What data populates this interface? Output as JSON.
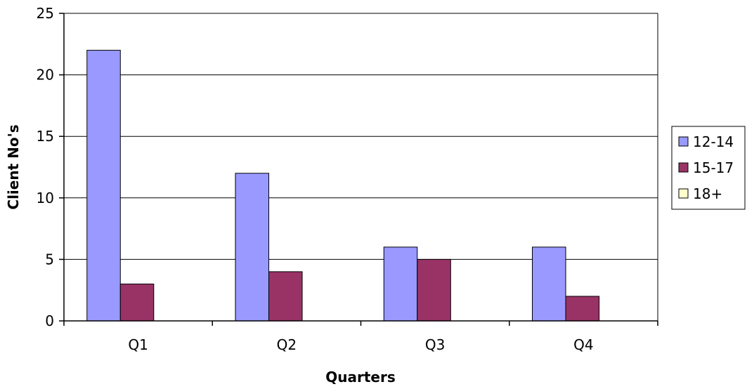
{
  "chart_data": {
    "type": "bar",
    "categories": [
      "Q1",
      "Q2",
      "Q3",
      "Q4"
    ],
    "series": [
      {
        "name": "12-14",
        "values": [
          22,
          12,
          6,
          6
        ],
        "color": "#9999FF"
      },
      {
        "name": "15-17",
        "values": [
          3,
          4,
          5,
          2
        ],
        "color": "#993366"
      },
      {
        "name": "18+",
        "values": [
          0,
          0,
          0,
          0
        ],
        "color": "#FFFFCC"
      }
    ],
    "xlabel": "Quarters",
    "ylabel": "Client No's",
    "ylim": [
      0,
      25
    ],
    "yticks": [
      "0",
      "5",
      "10",
      "15",
      "20",
      "25"
    ],
    "grid": true,
    "legend_position": "right"
  }
}
